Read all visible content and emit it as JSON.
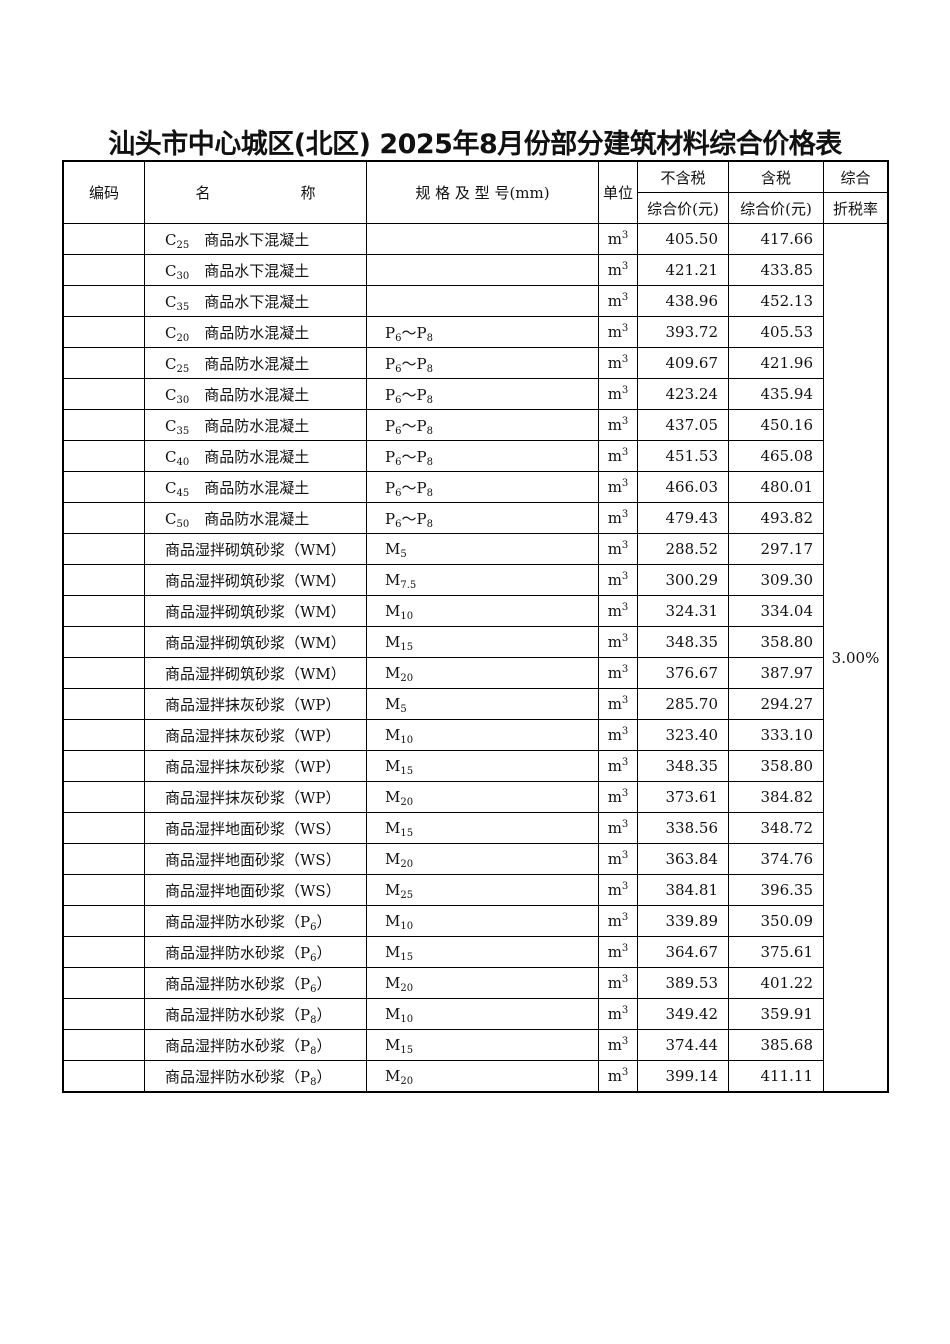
{
  "title": "汕头市中心城区(北区) 2025年8月份部分建筑材料综合价格表",
  "headers": {
    "code": "编码",
    "name": "名　　　　　　称",
    "spec": "规 格 及 型 号(mm)",
    "unit": "单位",
    "pretax_1": "不含税",
    "pretax_2": "综合价(元)",
    "tax_1": "含税",
    "tax_2": "综合价(元)",
    "rate_1": "综合",
    "rate_2": "折税率"
  },
  "rate": "3.00%",
  "unit": {
    "base": "m",
    "sup": "3"
  },
  "rows": [
    {
      "name": [
        [
          "C"
        ],
        [
          "25",
          "s"
        ],
        [
          "　商品水下混凝土"
        ]
      ],
      "spec": [],
      "pre": "405.50",
      "tax": "417.66"
    },
    {
      "name": [
        [
          "C"
        ],
        [
          "30",
          "s"
        ],
        [
          "　商品水下混凝土"
        ]
      ],
      "spec": [],
      "pre": "421.21",
      "tax": "433.85"
    },
    {
      "name": [
        [
          "C"
        ],
        [
          "35",
          "s"
        ],
        [
          "　商品水下混凝土"
        ]
      ],
      "spec": [],
      "pre": "438.96",
      "tax": "452.13"
    },
    {
      "name": [
        [
          "C"
        ],
        [
          "20",
          "s"
        ],
        [
          "　商品防水混凝土"
        ]
      ],
      "spec": [
        [
          "P"
        ],
        [
          "6",
          "s"
        ],
        [
          "～P"
        ],
        [
          "8",
          "s"
        ]
      ],
      "pre": "393.72",
      "tax": "405.53"
    },
    {
      "name": [
        [
          "C"
        ],
        [
          "25",
          "s"
        ],
        [
          "　商品防水混凝土"
        ]
      ],
      "spec": [
        [
          "P"
        ],
        [
          "6",
          "s"
        ],
        [
          "～P"
        ],
        [
          "8",
          "s"
        ]
      ],
      "pre": "409.67",
      "tax": "421.96"
    },
    {
      "name": [
        [
          "C"
        ],
        [
          "30",
          "s"
        ],
        [
          "　商品防水混凝土"
        ]
      ],
      "spec": [
        [
          "P"
        ],
        [
          "6",
          "s"
        ],
        [
          "～P"
        ],
        [
          "8",
          "s"
        ]
      ],
      "pre": "423.24",
      "tax": "435.94"
    },
    {
      "name": [
        [
          "C"
        ],
        [
          "35",
          "s"
        ],
        [
          "　商品防水混凝土"
        ]
      ],
      "spec": [
        [
          "P"
        ],
        [
          "6",
          "s"
        ],
        [
          "～P"
        ],
        [
          "8",
          "s"
        ]
      ],
      "pre": "437.05",
      "tax": "450.16"
    },
    {
      "name": [
        [
          "C"
        ],
        [
          "40",
          "s"
        ],
        [
          "　商品防水混凝土"
        ]
      ],
      "spec": [
        [
          "P"
        ],
        [
          "6",
          "s"
        ],
        [
          "～P"
        ],
        [
          "8",
          "s"
        ]
      ],
      "pre": "451.53",
      "tax": "465.08"
    },
    {
      "name": [
        [
          "C"
        ],
        [
          "45",
          "s"
        ],
        [
          "　商品防水混凝土"
        ]
      ],
      "spec": [
        [
          "P"
        ],
        [
          "6",
          "s"
        ],
        [
          "～P"
        ],
        [
          "8",
          "s"
        ]
      ],
      "pre": "466.03",
      "tax": "480.01"
    },
    {
      "name": [
        [
          "C"
        ],
        [
          "50",
          "s"
        ],
        [
          "　商品防水混凝土"
        ]
      ],
      "spec": [
        [
          "P"
        ],
        [
          "6",
          "s"
        ],
        [
          "～P"
        ],
        [
          "8",
          "s"
        ]
      ],
      "pre": "479.43",
      "tax": "493.82"
    },
    {
      "name": [
        [
          "商品湿拌砌筑砂浆（WM）"
        ]
      ],
      "spec": [
        [
          "M"
        ],
        [
          "5",
          "s"
        ]
      ],
      "pre": "288.52",
      "tax": "297.17"
    },
    {
      "name": [
        [
          "商品湿拌砌筑砂浆（WM）"
        ]
      ],
      "spec": [
        [
          "M"
        ],
        [
          "7.5",
          "s"
        ]
      ],
      "pre": "300.29",
      "tax": "309.30"
    },
    {
      "name": [
        [
          "商品湿拌砌筑砂浆（WM）"
        ]
      ],
      "spec": [
        [
          "M"
        ],
        [
          "10",
          "s"
        ]
      ],
      "pre": "324.31",
      "tax": "334.04"
    },
    {
      "name": [
        [
          "商品湿拌砌筑砂浆（WM）"
        ]
      ],
      "spec": [
        [
          "M"
        ],
        [
          "15",
          "s"
        ]
      ],
      "pre": "348.35",
      "tax": "358.80"
    },
    {
      "name": [
        [
          "商品湿拌砌筑砂浆（WM）"
        ]
      ],
      "spec": [
        [
          "M"
        ],
        [
          "20",
          "s"
        ]
      ],
      "pre": "376.67",
      "tax": "387.97"
    },
    {
      "name": [
        [
          "商品湿拌抹灰砂浆（WP）"
        ]
      ],
      "spec": [
        [
          "M"
        ],
        [
          "5",
          "s"
        ]
      ],
      "pre": "285.70",
      "tax": "294.27"
    },
    {
      "name": [
        [
          "商品湿拌抹灰砂浆（WP）"
        ]
      ],
      "spec": [
        [
          "M"
        ],
        [
          "10",
          "s"
        ]
      ],
      "pre": "323.40",
      "tax": "333.10"
    },
    {
      "name": [
        [
          "商品湿拌抹灰砂浆（WP）"
        ]
      ],
      "spec": [
        [
          "M"
        ],
        [
          "15",
          "s"
        ]
      ],
      "pre": "348.35",
      "tax": "358.80"
    },
    {
      "name": [
        [
          "商品湿拌抹灰砂浆（WP）"
        ]
      ],
      "spec": [
        [
          "M"
        ],
        [
          "20",
          "s"
        ]
      ],
      "pre": "373.61",
      "tax": "384.82"
    },
    {
      "name": [
        [
          "商品湿拌地面砂浆（WS）"
        ]
      ],
      "spec": [
        [
          "M"
        ],
        [
          "15",
          "s"
        ]
      ],
      "pre": "338.56",
      "tax": "348.72"
    },
    {
      "name": [
        [
          "商品湿拌地面砂浆（WS）"
        ]
      ],
      "spec": [
        [
          "M"
        ],
        [
          "20",
          "s"
        ]
      ],
      "pre": "363.84",
      "tax": "374.76"
    },
    {
      "name": [
        [
          "商品湿拌地面砂浆（WS）"
        ]
      ],
      "spec": [
        [
          "M"
        ],
        [
          "25",
          "s"
        ]
      ],
      "pre": "384.81",
      "tax": "396.35"
    },
    {
      "name": [
        [
          "商品湿拌防水砂浆（P"
        ],
        [
          "6",
          "s"
        ],
        [
          "）"
        ]
      ],
      "spec": [
        [
          "M"
        ],
        [
          "10",
          "s"
        ]
      ],
      "pre": "339.89",
      "tax": "350.09"
    },
    {
      "name": [
        [
          "商品湿拌防水砂浆（P"
        ],
        [
          "6",
          "s"
        ],
        [
          "）"
        ]
      ],
      "spec": [
        [
          "M"
        ],
        [
          "15",
          "s"
        ]
      ],
      "pre": "364.67",
      "tax": "375.61"
    },
    {
      "name": [
        [
          "商品湿拌防水砂浆（P"
        ],
        [
          "6",
          "s"
        ],
        [
          "）"
        ]
      ],
      "spec": [
        [
          "M"
        ],
        [
          "20",
          "s"
        ]
      ],
      "pre": "389.53",
      "tax": "401.22"
    },
    {
      "name": [
        [
          "商品湿拌防水砂浆（P"
        ],
        [
          "8",
          "s"
        ],
        [
          "）"
        ]
      ],
      "spec": [
        [
          "M"
        ],
        [
          "10",
          "s"
        ]
      ],
      "pre": "349.42",
      "tax": "359.91"
    },
    {
      "name": [
        [
          "商品湿拌防水砂浆（P"
        ],
        [
          "8",
          "s"
        ],
        [
          "）"
        ]
      ],
      "spec": [
        [
          "M"
        ],
        [
          "15",
          "s"
        ]
      ],
      "pre": "374.44",
      "tax": "385.68"
    },
    {
      "name": [
        [
          "商品湿拌防水砂浆（P"
        ],
        [
          "8",
          "s"
        ],
        [
          "）"
        ]
      ],
      "spec": [
        [
          "M"
        ],
        [
          "20",
          "s"
        ]
      ],
      "pre": "399.14",
      "tax": "411.11"
    }
  ]
}
